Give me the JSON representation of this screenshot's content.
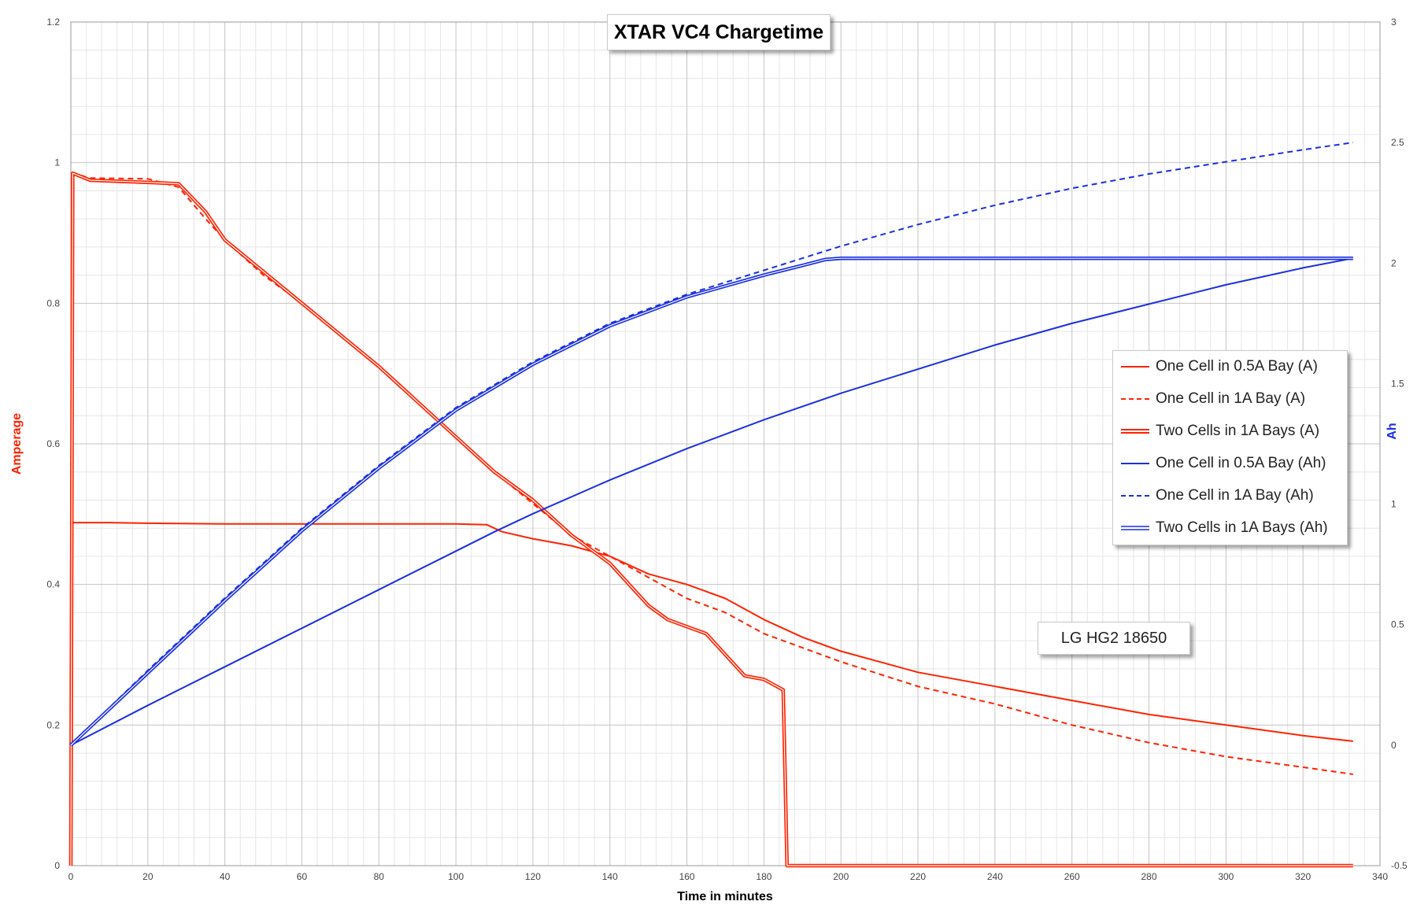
{
  "chart_data": {
    "type": "line",
    "title": "XTAR VC4 Chargetime",
    "xlabel": "Time in minutes",
    "ylabel": "Amperage",
    "y2label": "Ah",
    "xlim": [
      0,
      340
    ],
    "ylim": [
      0,
      1.2
    ],
    "y2lim": [
      -0.5,
      3
    ],
    "xticks": [
      0,
      20,
      40,
      60,
      80,
      100,
      120,
      140,
      160,
      180,
      200,
      220,
      240,
      260,
      280,
      300,
      320,
      340
    ],
    "yticks": [
      0,
      0.2,
      0.4,
      0.6,
      0.8,
      1,
      1.2
    ],
    "y2ticks": [
      -0.5,
      0,
      0.5,
      1,
      1.5,
      2,
      2.5,
      3
    ],
    "grid": true,
    "legend_position": "right",
    "annotation": "LG HG2 18650",
    "colors": {
      "amperage": "#ff2200",
      "ah": "#1a2fe0"
    },
    "series": [
      {
        "name": "One Cell in 0.5A Bay (A)",
        "axis": "left",
        "style": "solid",
        "x": [
          0,
          0.5,
          5,
          10,
          20,
          40,
          60,
          80,
          100,
          108,
          110,
          112,
          120,
          130,
          140,
          150,
          160,
          170,
          180,
          190,
          200,
          220,
          240,
          260,
          280,
          300,
          320,
          333
        ],
        "y": [
          0,
          0.488,
          0.488,
          0.488,
          0.487,
          0.486,
          0.486,
          0.486,
          0.486,
          0.485,
          0.48,
          0.475,
          0.465,
          0.455,
          0.44,
          0.415,
          0.4,
          0.38,
          0.35,
          0.325,
          0.305,
          0.275,
          0.255,
          0.235,
          0.215,
          0.2,
          0.185,
          0.177
        ]
      },
      {
        "name": "One Cell in 1A Bay (A)",
        "axis": "left",
        "style": "dashed",
        "x": [
          0,
          0.5,
          5,
          20,
          28,
          35,
          40,
          50,
          60,
          70,
          80,
          90,
          100,
          110,
          120,
          130,
          140,
          150,
          160,
          170,
          180,
          190,
          200,
          220,
          240,
          260,
          280,
          300,
          320,
          333
        ],
        "y": [
          0.5,
          0.985,
          0.978,
          0.977,
          0.965,
          0.92,
          0.89,
          0.84,
          0.8,
          0.755,
          0.71,
          0.66,
          0.61,
          0.56,
          0.515,
          0.47,
          0.44,
          0.41,
          0.38,
          0.36,
          0.33,
          0.31,
          0.29,
          0.255,
          0.23,
          0.2,
          0.175,
          0.155,
          0.14,
          0.13
        ]
      },
      {
        "name": "Two Cells in 1A Bays (A)",
        "axis": "left",
        "style": "double",
        "x": [
          0,
          0.5,
          5,
          20,
          28,
          35,
          40,
          50,
          60,
          70,
          80,
          90,
          100,
          110,
          120,
          130,
          140,
          145,
          150,
          155,
          160,
          165,
          170,
          175,
          180,
          185,
          186,
          198,
          199,
          250,
          300,
          333
        ],
        "y": [
          0,
          0.985,
          0.975,
          0.972,
          0.97,
          0.93,
          0.89,
          0.845,
          0.8,
          0.755,
          0.71,
          0.66,
          0.61,
          0.56,
          0.52,
          0.47,
          0.43,
          0.4,
          0.37,
          0.35,
          0.34,
          0.33,
          0.3,
          0.27,
          0.265,
          0.25,
          0.0,
          0.0,
          0.0,
          0.0,
          0.0,
          0.0
        ]
      },
      {
        "name": "One Cell in 0.5A Bay (Ah)",
        "axis": "right",
        "style": "solid",
        "x": [
          0,
          20,
          40,
          60,
          80,
          100,
          110,
          120,
          140,
          160,
          180,
          200,
          220,
          240,
          260,
          280,
          300,
          320,
          333
        ],
        "y": [
          0,
          0.165,
          0.325,
          0.485,
          0.645,
          0.805,
          0.885,
          0.96,
          1.1,
          1.23,
          1.35,
          1.46,
          1.56,
          1.66,
          1.75,
          1.83,
          1.91,
          1.98,
          2.02
        ]
      },
      {
        "name": "One Cell in 1A Bay (Ah)",
        "axis": "right",
        "style": "dashed",
        "x": [
          0,
          20,
          40,
          60,
          80,
          100,
          120,
          140,
          160,
          180,
          200,
          220,
          240,
          260,
          280,
          300,
          320,
          333
        ],
        "y": [
          0,
          0.31,
          0.61,
          0.9,
          1.16,
          1.4,
          1.59,
          1.75,
          1.87,
          1.97,
          2.07,
          2.16,
          2.24,
          2.31,
          2.37,
          2.42,
          2.47,
          2.5
        ]
      },
      {
        "name": "Two Cells in 1A Bays (Ah)",
        "axis": "right",
        "style": "double",
        "x": [
          0,
          20,
          40,
          60,
          80,
          100,
          120,
          140,
          160,
          180,
          190,
          196,
          200,
          250,
          300,
          333
        ],
        "y": [
          0,
          0.3,
          0.6,
          0.89,
          1.15,
          1.39,
          1.58,
          1.74,
          1.86,
          1.95,
          1.99,
          2.015,
          2.02,
          2.02,
          2.02,
          2.02
        ]
      }
    ]
  }
}
